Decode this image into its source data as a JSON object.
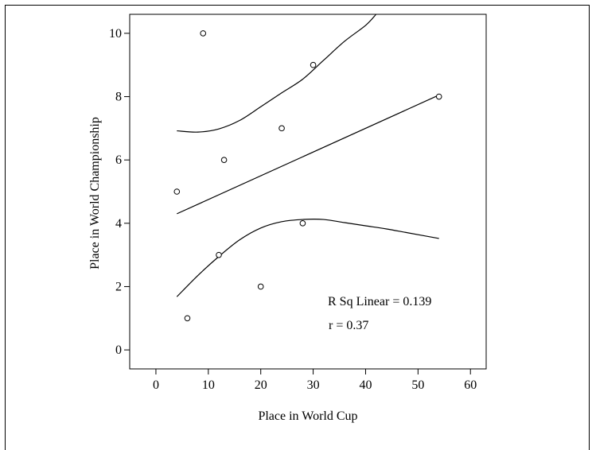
{
  "chart_data": {
    "type": "scatter",
    "title": "",
    "xlabel": "Place in World Cup",
    "ylabel": "Place in World Championship",
    "xlim": [
      -5,
      63
    ],
    "ylim": [
      -0.6,
      10.6
    ],
    "xticks": [
      0,
      10,
      20,
      30,
      40,
      50,
      60
    ],
    "yticks": [
      0,
      2,
      4,
      6,
      8,
      10
    ],
    "grid": false,
    "points": [
      {
        "x": 9,
        "y": 10
      },
      {
        "x": 30,
        "y": 9
      },
      {
        "x": 54,
        "y": 8
      },
      {
        "x": 24,
        "y": 7
      },
      {
        "x": 13,
        "y": 6
      },
      {
        "x": 4,
        "y": 5
      },
      {
        "x": 28,
        "y": 4
      },
      {
        "x": 12,
        "y": 3
      },
      {
        "x": 20,
        "y": 2
      },
      {
        "x": 6,
        "y": 1
      }
    ],
    "fit_line": {
      "x1": 4,
      "y1": 4.3,
      "x2": 54,
      "y2": 8.05
    },
    "upper_band": [
      [
        4,
        6.92
      ],
      [
        8,
        6.88
      ],
      [
        12,
        6.98
      ],
      [
        16,
        7.25
      ],
      [
        20,
        7.68
      ],
      [
        24,
        8.12
      ],
      [
        28,
        8.55
      ],
      [
        32,
        9.15
      ],
      [
        36,
        9.75
      ],
      [
        40,
        10.25
      ],
      [
        42,
        10.6
      ]
    ],
    "lower_band": [
      [
        4,
        1.68
      ],
      [
        8,
        2.35
      ],
      [
        12,
        2.95
      ],
      [
        16,
        3.48
      ],
      [
        20,
        3.85
      ],
      [
        24,
        4.05
      ],
      [
        28,
        4.12
      ],
      [
        32,
        4.12
      ],
      [
        36,
        4.02
      ],
      [
        40,
        3.92
      ],
      [
        44,
        3.82
      ],
      [
        48,
        3.7
      ],
      [
        54,
        3.52
      ]
    ],
    "annotations": {
      "rsq": "R Sq Linear = 0.139",
      "r": "r = 0.37"
    }
  }
}
